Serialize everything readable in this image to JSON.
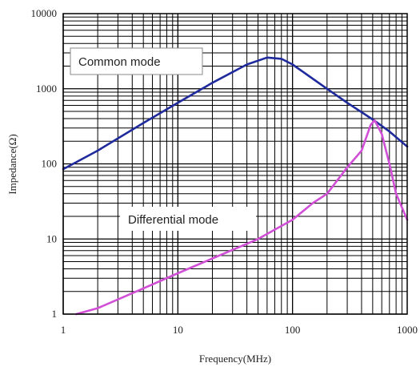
{
  "chart_data": {
    "type": "line",
    "xlabel": "Frequency(MHz)",
    "ylabel": "Impedance(Ω)",
    "x_scale": "log",
    "y_scale": "log",
    "xlim": [
      1,
      1000
    ],
    "ylim": [
      1,
      10000
    ],
    "grid": true,
    "x_ticks": [
      "1",
      "10",
      "100",
      "1000"
    ],
    "y_ticks": [
      "1",
      "10",
      "100",
      "1000",
      "10000"
    ],
    "series": [
      {
        "name": "Common mode",
        "color": "#1f2a9c",
        "x": [
          1,
          2,
          5,
          10,
          20,
          40,
          60,
          80,
          100,
          200,
          300,
          500,
          700,
          1000
        ],
        "y": [
          85,
          150,
          350,
          650,
          1200,
          2100,
          2600,
          2500,
          2100,
          1000,
          650,
          390,
          270,
          170
        ]
      },
      {
        "name": "Differential mode",
        "color": "#d04fd6",
        "x": [
          1.3,
          2,
          5,
          10,
          20,
          50,
          100,
          150,
          200,
          300,
          400,
          480,
          520,
          600,
          700,
          800,
          1000
        ],
        "y": [
          1,
          1.2,
          2.2,
          3.5,
          5.5,
          10,
          18,
          30,
          40,
          90,
          150,
          330,
          380,
          250,
          100,
          40,
          18
        ]
      }
    ]
  }
}
